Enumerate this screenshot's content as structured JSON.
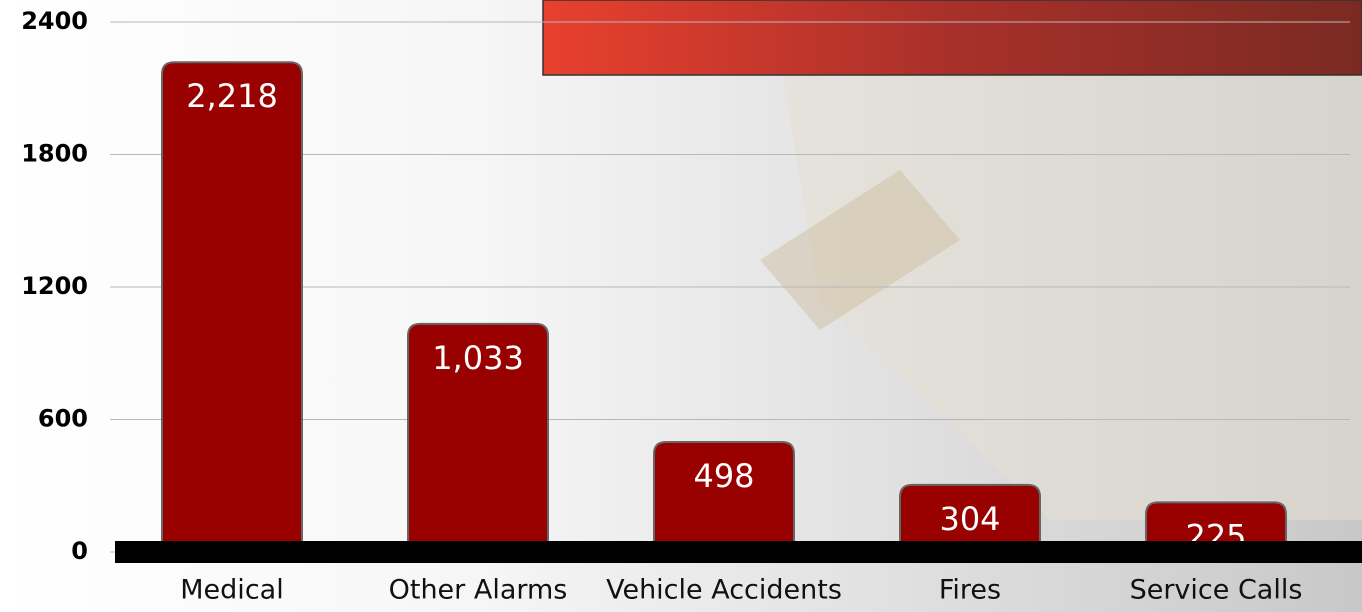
{
  "chart_data": {
    "type": "bar",
    "categories": [
      "Medical",
      "Other Alarms",
      "Vehicle Accidents",
      "Fires",
      "Service Calls"
    ],
    "values": [
      2218,
      1033,
      498,
      304,
      225
    ],
    "value_labels": [
      "2,218",
      "1,033",
      "498",
      "304",
      "225"
    ],
    "color": "#990000",
    "ylim": [
      0,
      2400
    ],
    "yticks": [
      0,
      600,
      1200,
      1800,
      2400
    ],
    "grid": true
  }
}
